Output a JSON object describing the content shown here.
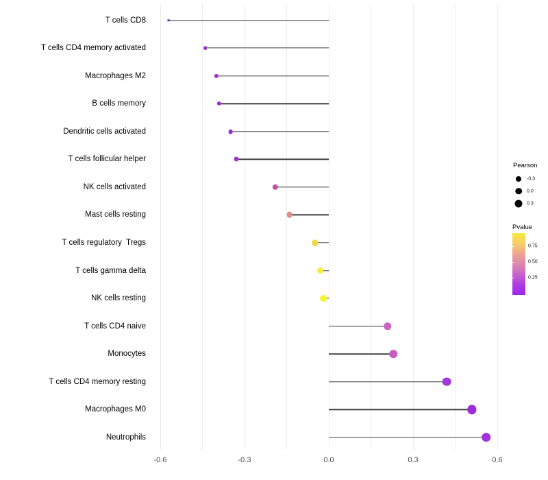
{
  "chart_data": {
    "type": "scatter",
    "subtype": "lollipop",
    "title": "",
    "xlabel": "",
    "ylabel": "",
    "xlim": [
      -0.63,
      0.65
    ],
    "x_ticks": [
      -0.6,
      -0.3,
      0.0,
      0.3,
      0.6
    ],
    "x_tick_labels": [
      "-0.6",
      "-0.3",
      "0.0",
      "0.3",
      "0.6"
    ],
    "grid": "vertical gridlines every 0.15, light gray, no panel border",
    "legend_position": "right",
    "categories": [
      "T cells CD8",
      "T cells CD4 memory activated",
      "Macrophages M2",
      "B cells memory",
      "Dendritic cells activated",
      "T cells follicular helper",
      "NK cells activated",
      "Mast cells resting",
      "T cells regulatory  Tregs",
      "T cells gamma delta",
      "NK cells resting",
      "T cells CD4 naive",
      "Monocytes",
      "T cells CD4 memory resting",
      "Macrophages M0",
      "Neutrophils"
    ],
    "series": [
      {
        "name": "Pearson",
        "values": [
          -0.57,
          -0.44,
          -0.4,
          -0.39,
          -0.35,
          -0.33,
          -0.19,
          -0.14,
          -0.05,
          -0.03,
          -0.02,
          0.21,
          0.23,
          0.42,
          0.51,
          0.56
        ]
      }
    ],
    "point_colors": [
      "#8426cf",
      "#9934d4",
      "#9a34d0",
      "#9a34d0",
      "#9531d4",
      "#9c36cc",
      "#c2549e",
      "#df8e89",
      "#f2d74b",
      "#f5eb3a",
      "#f9f32c",
      "#ca64c3",
      "#c75ec0",
      "#a338d9",
      "#9e2cdb",
      "#a232dd"
    ]
  },
  "legends": {
    "size": {
      "title": "Pearson",
      "entries": [
        {
          "label": "-0.3",
          "diameter": 8
        },
        {
          "label": "0.0",
          "diameter": 9.5
        },
        {
          "label": "0.3",
          "diameter": 11
        }
      ]
    },
    "color": {
      "title": "Pvalue",
      "labels": [
        "0.75",
        "0.50",
        "0.25"
      ],
      "gradient_stops": [
        "#f9ea3d",
        "#f6cd68",
        "#eda68f",
        "#dd87ae",
        "#c765cb",
        "#ad3ce4",
        "#a025ee"
      ]
    }
  },
  "colors": {
    "stem": "#3d3d3d",
    "grid": "#ececec",
    "axis_text": "#4d4d4d",
    "background": "#ffffff"
  }
}
